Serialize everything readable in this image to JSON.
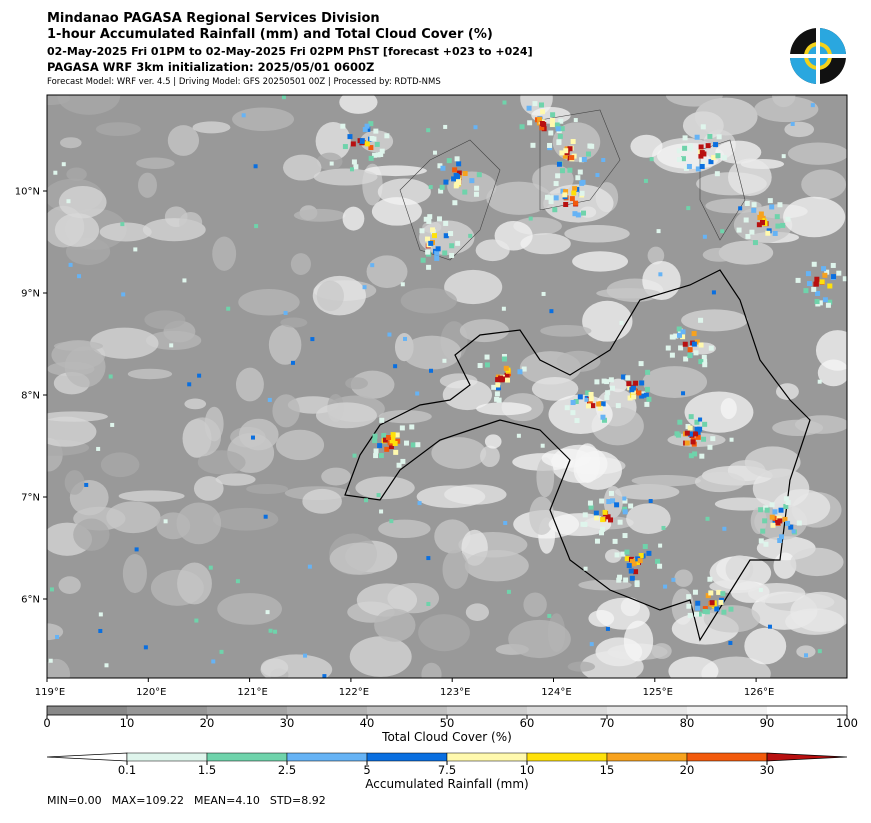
{
  "header": {
    "lines": [
      "Mindanao PAGASA Regional Services Division",
      "1-hour Accumulated Rainfall (mm) and Total Cloud Cover (%)",
      "02-May-2025 Fri 01PM to 02-May-2025 Fri 02PM PhST [forecast +023 to +024]",
      "PAGASA WRF 3km initialization: 2025/05/01 0600Z"
    ],
    "note": "Forecast Model: WRF ver. 4.5 | Driving Model: GFS 20250501 00Z | Processed by: RDTD-NMS"
  },
  "map": {
    "lat_ticks": [
      {
        "value": 10,
        "label": "10°N"
      },
      {
        "value": 9,
        "label": "9°N"
      },
      {
        "value": 8,
        "label": "8°N"
      },
      {
        "value": 7,
        "label": "7°N"
      },
      {
        "value": 6,
        "label": "6°N"
      }
    ],
    "lon_ticks": [
      {
        "value": 119,
        "label": "119°E"
      },
      {
        "value": 120,
        "label": "120°E"
      },
      {
        "value": 121,
        "label": "121°E"
      },
      {
        "value": 122,
        "label": "122°E"
      },
      {
        "value": 123,
        "label": "123°E"
      },
      {
        "value": 124,
        "label": "124°E"
      },
      {
        "value": 125,
        "label": "125°E"
      },
      {
        "value": 126,
        "label": "126°E"
      }
    ]
  },
  "cloud_colorbar": {
    "label": "Total Cloud Cover (%)",
    "ticks": [
      0,
      10,
      20,
      30,
      40,
      50,
      60,
      70,
      80,
      90,
      100
    ],
    "colors": [
      "#888888",
      "#969696",
      "#a4a4a4",
      "#b2b2b2",
      "#c0c0c0",
      "#cecece",
      "#dbdbdb",
      "#e7e7e7",
      "#f2f2f2",
      "#ffffff"
    ]
  },
  "rain_colorbar": {
    "label": "Accumulated Rainfall (mm)",
    "ticks": [
      0.1,
      1.5,
      2.5,
      5,
      7.5,
      10,
      15,
      20,
      30
    ],
    "colors": [
      "#ffffff",
      "#dff5ec",
      "#6fd3ab",
      "#66b3f5",
      "#0a6fe0",
      "#fff9ae",
      "#ffe10a",
      "#f7a21e",
      "#f25a0c",
      "#b81010"
    ]
  },
  "stats": [
    "MIN=0.00",
    "MAX=109.22",
    "MEAN=4.10",
    "STD=8.92"
  ]
}
